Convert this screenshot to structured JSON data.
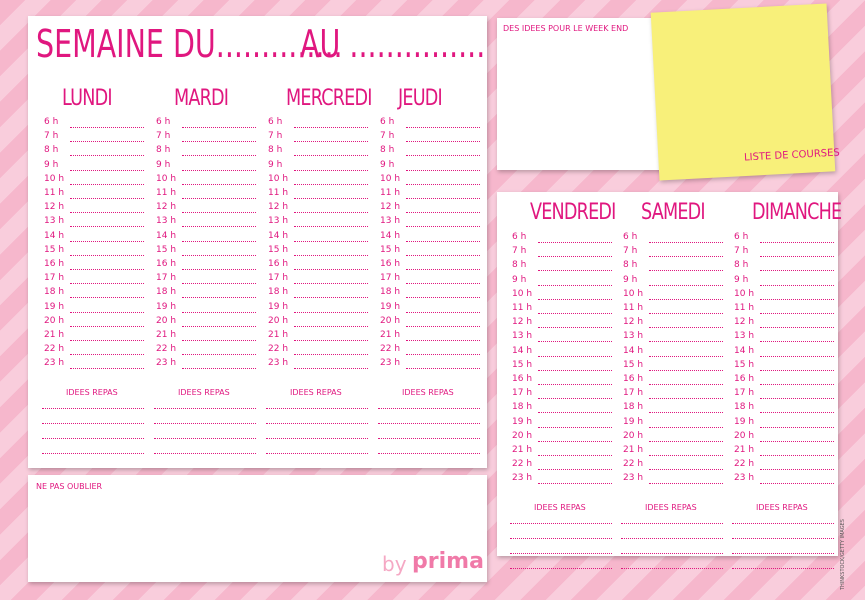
{
  "header": {
    "title": "SEMAINE DU..............",
    "until": "AU ..............."
  },
  "days": [
    "LUNDI",
    "MARDI",
    "MERCREDI",
    "JEUDI",
    "VENDREDI",
    "SAMEDI",
    "DIMANCHE"
  ],
  "hours": [
    "6 h",
    "7 h",
    "8 h",
    "9 h",
    "10 h",
    "11 h",
    "12 h",
    "13 h",
    "14 h",
    "15 h",
    "16 h",
    "17 h",
    "18 h",
    "19 h",
    "20 h",
    "21 h",
    "22 h",
    "23 h"
  ],
  "meals_label": "IDEES REPAS",
  "weekend_label": "DES IDEES POUR LE WEEK END",
  "shopping_label": "LISTE DE COURSES",
  "reminder_label": "NE PAS OUBLIER",
  "brand": {
    "by": "by",
    "name": "prima"
  },
  "credit": "THINKSTOCK/GETTY IMAGES"
}
